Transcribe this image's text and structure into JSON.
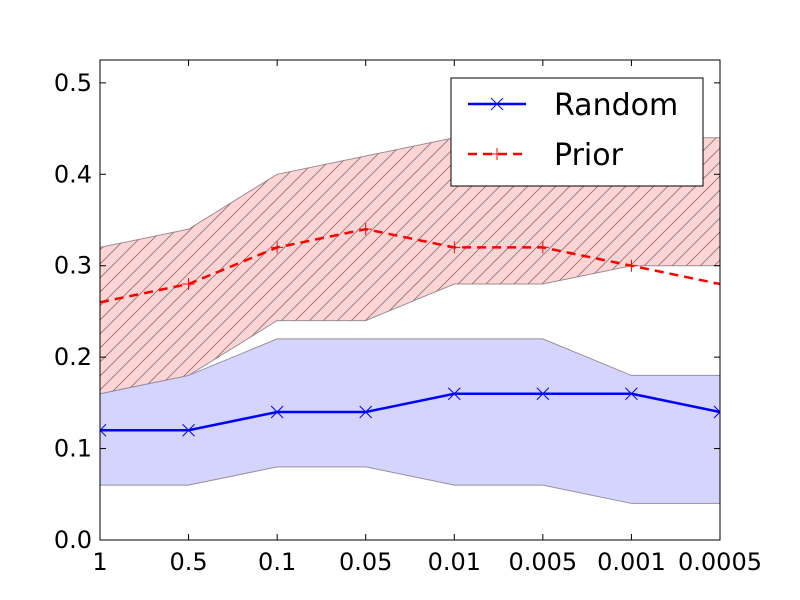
{
  "chart_data": {
    "type": "line",
    "title": "",
    "xlabel": "",
    "ylabel": "",
    "categories": [
      "1",
      "0.5",
      "0.1",
      "0.05",
      "0.01",
      "0.005",
      "0.001",
      "0.0005"
    ],
    "ylim": [
      0.0,
      0.525
    ],
    "yticks": [
      "0.0",
      "0.1",
      "0.2",
      "0.3",
      "0.4",
      "0.5"
    ],
    "grid": false,
    "legend_position": "top-right",
    "series": [
      {
        "name": "Random",
        "color": "#0000ff",
        "line_style": "solid",
        "marker": "x",
        "values": [
          0.12,
          0.12,
          0.14,
          0.14,
          0.16,
          0.16,
          0.16,
          0.14
        ],
        "band_lower": [
          0.06,
          0.06,
          0.08,
          0.08,
          0.06,
          0.06,
          0.04,
          0.04
        ],
        "band_upper": [
          0.16,
          0.18,
          0.22,
          0.22,
          0.22,
          0.22,
          0.18,
          0.18
        ],
        "band_color": "#ccccff"
      },
      {
        "name": "Prior",
        "color": "#ff0000",
        "line_style": "dashed",
        "marker": "+",
        "values": [
          0.26,
          0.28,
          0.32,
          0.34,
          0.32,
          0.32,
          0.3,
          0.28
        ],
        "band_lower": [
          0.16,
          0.18,
          0.24,
          0.24,
          0.28,
          0.28,
          0.3,
          0.3
        ],
        "band_upper": [
          0.32,
          0.34,
          0.4,
          0.42,
          0.44,
          0.44,
          0.44,
          0.44
        ],
        "band_color": "#ffcccc",
        "band_hatch": "diagonal"
      }
    ]
  }
}
